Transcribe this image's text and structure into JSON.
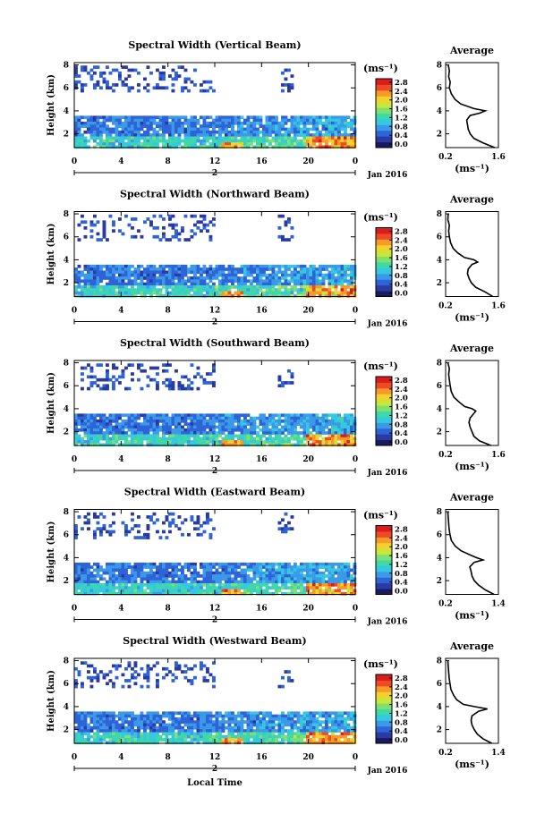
{
  "figure": {
    "xlabel": "Local Time",
    "date_label": "Jan 2016",
    "day_label": "2"
  },
  "colorbar": {
    "unit": "(ms⁻¹)",
    "ticks": [
      "2.8",
      "2.4",
      "2.0",
      "1.6",
      "1.2",
      "0.8",
      "0.4",
      "0.0"
    ],
    "colors": [
      "#1a1a60",
      "#2a3aa0",
      "#2f63d8",
      "#3a9ae8",
      "#35c8e0",
      "#3fd8a8",
      "#7ee070",
      "#c9e63a",
      "#f3d22d",
      "#f79a2a",
      "#ee4a26",
      "#d91c1c"
    ]
  },
  "chart_data": [
    {
      "type": "heatmap",
      "title": "Spectral Width (Vertical Beam)",
      "ylabel": "Height (km)",
      "xticks": [
        "0",
        "4",
        "8",
        "12",
        "16",
        "20",
        "0"
      ],
      "yticks": [
        "2",
        "4",
        "6",
        "8"
      ],
      "xlim": [
        0,
        24
      ],
      "ylim": [
        0.8,
        8.2
      ],
      "color_unit": "ms^-1",
      "color_range": [
        0.0,
        2.8
      ],
      "profile": {
        "title": "Average",
        "xlabel": "(ms⁻¹)",
        "xticks": [
          "0.2",
          "1.6"
        ],
        "yticks": [
          "2",
          "4",
          "6",
          "8"
        ],
        "xlim": [
          0.2,
          1.6
        ],
        "height": [
          0.8,
          1.2,
          1.6,
          2.0,
          2.4,
          2.8,
          3.2,
          3.6,
          3.8,
          4.0,
          4.2,
          4.6,
          5.0,
          5.5,
          6.0,
          6.5,
          7.0,
          7.5,
          8.0
        ],
        "width": [
          1.5,
          1.2,
          0.95,
          0.85,
          0.8,
          0.78,
          0.76,
          0.85,
          1.1,
          1.25,
          0.95,
          0.6,
          0.45,
          0.35,
          0.3,
          0.32,
          0.28,
          0.3,
          0.27
        ]
      }
    },
    {
      "type": "heatmap",
      "title": "Spectral Width (Northward Beam)",
      "ylabel": "Height (km)",
      "xticks": [
        "0",
        "4",
        "8",
        "12",
        "16",
        "20",
        "0"
      ],
      "yticks": [
        "2",
        "4",
        "6",
        "8"
      ],
      "xlim": [
        0,
        24
      ],
      "ylim": [
        0.8,
        8.2
      ],
      "color_unit": "ms^-1",
      "color_range": [
        0.0,
        2.8
      ],
      "profile": {
        "title": "Average",
        "xlabel": "(ms⁻¹)",
        "xticks": [
          "0.2",
          "1.6"
        ],
        "yticks": [
          "2",
          "4",
          "6",
          "8"
        ],
        "xlim": [
          0.2,
          1.6
        ],
        "height": [
          0.8,
          1.2,
          1.6,
          2.0,
          2.4,
          2.8,
          3.2,
          3.6,
          3.8,
          4.0,
          4.2,
          4.6,
          5.0,
          5.5,
          6.0,
          6.5,
          7.0,
          7.5,
          8.0
        ],
        "width": [
          1.45,
          1.25,
          1.0,
          0.88,
          0.82,
          0.78,
          0.8,
          0.9,
          1.05,
          0.95,
          0.7,
          0.52,
          0.4,
          0.33,
          0.3,
          0.28,
          0.3,
          0.26,
          0.27
        ]
      }
    },
    {
      "type": "heatmap",
      "title": "Spectral Width (Southward Beam)",
      "ylabel": "Height (km)",
      "xticks": [
        "0",
        "4",
        "8",
        "12",
        "16",
        "20",
        "0"
      ],
      "yticks": [
        "2",
        "4",
        "6",
        "8"
      ],
      "xlim": [
        0,
        24
      ],
      "ylim": [
        0.8,
        8.2
      ],
      "color_unit": "ms^-1",
      "color_range": [
        0.0,
        2.8
      ],
      "profile": {
        "title": "Average",
        "xlabel": "(ms⁻¹)",
        "xticks": [
          "0.2",
          "1.6"
        ],
        "yticks": [
          "2",
          "4",
          "6",
          "8"
        ],
        "xlim": [
          0.2,
          1.6
        ],
        "height": [
          0.8,
          1.2,
          1.6,
          2.0,
          2.4,
          2.8,
          3.2,
          3.6,
          3.8,
          4.0,
          4.2,
          4.6,
          5.0,
          5.5,
          6.0,
          6.5,
          7.0,
          7.5,
          8.0
        ],
        "width": [
          1.4,
          1.1,
          0.95,
          0.9,
          0.85,
          0.82,
          0.85,
          0.95,
          1.0,
          0.9,
          0.7,
          0.55,
          0.42,
          0.35,
          0.32,
          0.3,
          0.28,
          0.3,
          0.26
        ]
      }
    },
    {
      "type": "heatmap",
      "title": "Spectral Width (Eastward Beam)",
      "ylabel": "Height (km)",
      "xticks": [
        "0",
        "4",
        "8",
        "12",
        "16",
        "20",
        "0"
      ],
      "yticks": [
        "2",
        "4",
        "6",
        "8"
      ],
      "xlim": [
        0,
        24
      ],
      "ylim": [
        0.8,
        8.2
      ],
      "color_unit": "ms^-1",
      "color_range": [
        0.0,
        2.8
      ],
      "profile": {
        "title": "Average",
        "xlabel": "(ms⁻¹)",
        "xticks": [
          "0.2",
          "1.4"
        ],
        "yticks": [
          "2",
          "4",
          "6",
          "8"
        ],
        "xlim": [
          0.2,
          1.4
        ],
        "height": [
          0.8,
          1.2,
          1.6,
          2.0,
          2.4,
          2.8,
          3.2,
          3.6,
          3.8,
          4.0,
          4.2,
          4.6,
          5.0,
          5.5,
          6.0,
          6.5,
          7.0,
          7.5,
          8.0
        ],
        "width": [
          1.3,
          1.1,
          0.95,
          0.85,
          0.8,
          0.78,
          0.75,
          0.85,
          1.05,
          0.9,
          0.78,
          0.55,
          0.42,
          0.33,
          0.3,
          0.28,
          0.27,
          0.26,
          0.25
        ]
      }
    },
    {
      "type": "heatmap",
      "title": "Spectral Width (Westward Beam)",
      "ylabel": "Height (km)",
      "xticks": [
        "0",
        "4",
        "8",
        "12",
        "16",
        "20",
        "0"
      ],
      "yticks": [
        "2",
        "4",
        "6",
        "8"
      ],
      "xlim": [
        0,
        24
      ],
      "ylim": [
        0.8,
        8.2
      ],
      "color_unit": "ms^-1",
      "color_range": [
        0.0,
        2.8
      ],
      "profile": {
        "title": "Average",
        "xlabel": "(ms⁻¹)",
        "xticks": [
          "0.2",
          "1.4"
        ],
        "yticks": [
          "2",
          "4",
          "6",
          "8"
        ],
        "xlim": [
          0.2,
          1.4
        ],
        "height": [
          0.8,
          1.2,
          1.6,
          2.0,
          2.4,
          2.8,
          3.2,
          3.6,
          3.8,
          4.0,
          4.2,
          4.6,
          5.0,
          5.5,
          6.0,
          6.5,
          7.0,
          7.5,
          8.0
        ],
        "width": [
          1.25,
          1.05,
          0.92,
          0.85,
          0.8,
          0.78,
          0.8,
          0.95,
          1.15,
          0.85,
          0.6,
          0.45,
          0.38,
          0.32,
          0.3,
          0.28,
          0.27,
          0.26,
          0.25
        ]
      }
    }
  ]
}
